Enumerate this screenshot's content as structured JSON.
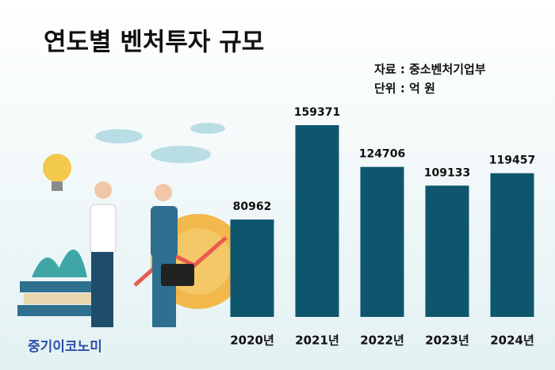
{
  "chart_data": {
    "type": "bar",
    "title": "연도별 벤처투자 규모",
    "source": "자료 : 중소벤처기업부",
    "unit": "단위 : 억 원",
    "watermark": "중기이코노미",
    "categories": [
      "2020년",
      "2021년",
      "2022년",
      "2023년",
      "2024년"
    ],
    "values": [
      80962,
      159371,
      124706,
      109133,
      119457
    ],
    "color": "#0e566e"
  }
}
